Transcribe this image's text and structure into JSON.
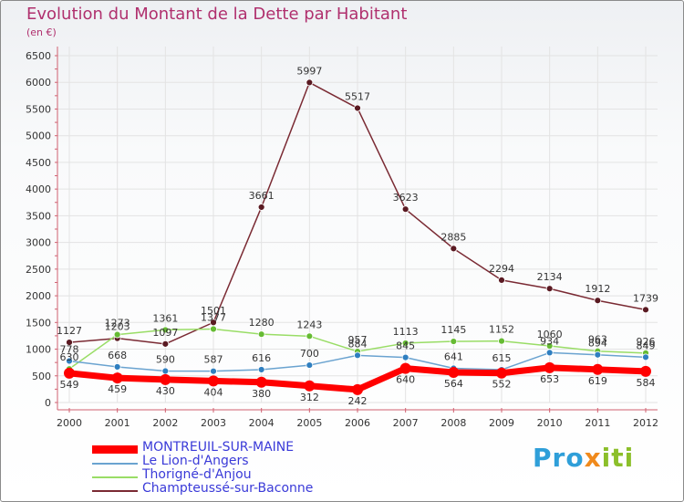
{
  "title": "Evolution du Montant de la Dette par Habitant",
  "unit": "(en €)",
  "logo": {
    "text_a": "Pro",
    "text_b": "x",
    "text_c": "iti"
  },
  "chart_data": {
    "type": "line",
    "categories": [
      "2000",
      "2001",
      "2002",
      "2003",
      "2004",
      "2005",
      "2006",
      "2007",
      "2008",
      "2009",
      "2010",
      "2011",
      "2012"
    ],
    "ylim": [
      0,
      6500
    ],
    "yticks": [
      0,
      500,
      1000,
      1500,
      2000,
      2500,
      3000,
      3500,
      4000,
      4500,
      5000,
      5500,
      6000,
      6500
    ],
    "series": [
      {
        "name": "MONTREUIL-SUR-MAINE",
        "color": "#ff0000",
        "width": 7,
        "marker": 6,
        "values": [
          549,
          459,
          430,
          404,
          380,
          312,
          242,
          640,
          564,
          552,
          653,
          619,
          584
        ],
        "labels": [
          "549",
          "459",
          "430",
          "404",
          "380",
          "312",
          "242",
          "640",
          "564",
          "552",
          "653",
          "619",
          "584"
        ]
      },
      {
        "name": "Le Lion-d'Angers",
        "color": "#6aa3d0",
        "width": 1.5,
        "marker": 3.5,
        "values": [
          778,
          668,
          590,
          587,
          616,
          700,
          884,
          845,
          641,
          615,
          934,
          894,
          849
        ],
        "labels": [
          "778",
          "668",
          "590",
          "587",
          "616",
          "700",
          "884",
          "845",
          "641",
          "615",
          "934",
          "894",
          "849"
        ]
      },
      {
        "name": "Thorigné-d'Anjou",
        "color": "#99dd66",
        "width": 1.5,
        "marker": 3.5,
        "values": [
          630,
          1273,
          1361,
          1377,
          1280,
          1243,
          957,
          1113,
          1145,
          1152,
          1060,
          963,
          926
        ],
        "labels": [
          "630",
          "1273",
          "1361",
          "1377",
          "1280",
          "1243",
          "957",
          "1113",
          "1145",
          "1152",
          "1060",
          "963",
          "926"
        ]
      },
      {
        "name": "Champteussé-sur-Baconne",
        "color": "#7a2a33",
        "width": 1.5,
        "marker": 3.5,
        "values": [
          1127,
          1203,
          1097,
          1501,
          3661,
          5997,
          5517,
          3623,
          2885,
          2294,
          2134,
          1912,
          1739
        ],
        "labels": [
          "1127",
          "1203",
          "1097",
          "1501",
          "3661",
          "5997",
          "5517",
          "3623",
          "2885",
          "2294",
          "2134",
          "1912",
          "1739"
        ]
      }
    ]
  }
}
